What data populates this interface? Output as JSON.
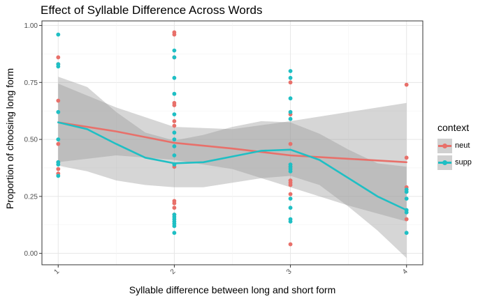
{
  "chart_data": {
    "type": "scatter",
    "title": "Effect of Syllable Difference Across Words",
    "xlabel": "Syllable difference between long and short form",
    "ylabel": "Proportion of choosing long form",
    "x_ticks": [
      "1",
      "2",
      "3",
      "4"
    ],
    "y_ticks": [
      "0.00",
      "0.25",
      "0.50",
      "0.75",
      "1.00"
    ],
    "xlim": [
      0.86,
      4.14
    ],
    "ylim": [
      -0.05,
      1.02
    ],
    "grid": true,
    "legend": {
      "title": "context",
      "position": "right"
    },
    "series": [
      {
        "name": "neut",
        "color": "#e8706a",
        "points": [
          [
            1,
            0.86
          ],
          [
            1,
            0.83
          ],
          [
            1,
            0.67
          ],
          [
            1,
            0.48
          ],
          [
            1,
            0.4
          ],
          [
            1,
            0.37
          ],
          [
            1,
            0.35
          ],
          [
            2,
            0.97
          ],
          [
            2,
            0.96
          ],
          [
            2,
            0.86
          ],
          [
            2,
            0.66
          ],
          [
            2,
            0.65
          ],
          [
            2,
            0.58
          ],
          [
            2,
            0.56
          ],
          [
            2,
            0.38
          ],
          [
            2,
            0.23
          ],
          [
            2,
            0.22
          ],
          [
            2,
            0.2
          ],
          [
            2,
            0.17
          ],
          [
            3,
            0.75
          ],
          [
            3,
            0.61
          ],
          [
            3,
            0.48
          ],
          [
            3,
            0.38
          ],
          [
            3,
            0.32
          ],
          [
            3,
            0.31
          ],
          [
            3,
            0.3
          ],
          [
            3,
            0.26
          ],
          [
            3,
            0.04
          ],
          [
            4,
            0.74
          ],
          [
            4,
            0.42
          ],
          [
            4,
            0.29
          ],
          [
            4,
            0.15
          ]
        ],
        "smooth": [
          [
            1,
            0.575
          ],
          [
            1.5,
            0.535
          ],
          [
            2,
            0.485
          ],
          [
            2.5,
            0.46
          ],
          [
            3,
            0.43
          ],
          [
            3.5,
            0.415
          ],
          [
            4,
            0.4
          ]
        ],
        "band_upper": [
          [
            1,
            0.745
          ],
          [
            1.5,
            0.64
          ],
          [
            2,
            0.555
          ],
          [
            2.5,
            0.545
          ],
          [
            3,
            0.58
          ],
          [
            3.5,
            0.62
          ],
          [
            4,
            0.66
          ]
        ],
        "band_lower": [
          [
            1,
            0.4
          ],
          [
            1.5,
            0.43
          ],
          [
            2,
            0.41
          ],
          [
            2.5,
            0.37
          ],
          [
            3,
            0.29
          ],
          [
            3.5,
            0.21
          ],
          [
            4,
            0.14
          ]
        ]
      },
      {
        "name": "supp",
        "color": "#1fbfc4",
        "points": [
          [
            1,
            0.96
          ],
          [
            1,
            0.83
          ],
          [
            1,
            0.82
          ],
          [
            1,
            0.62
          ],
          [
            1,
            0.5
          ],
          [
            1,
            0.4
          ],
          [
            1,
            0.39
          ],
          [
            1,
            0.34
          ],
          [
            2,
            0.89
          ],
          [
            2,
            0.86
          ],
          [
            2,
            0.77
          ],
          [
            2,
            0.7
          ],
          [
            2,
            0.61
          ],
          [
            2,
            0.53
          ],
          [
            2,
            0.5
          ],
          [
            2,
            0.47
          ],
          [
            2,
            0.43
          ],
          [
            2,
            0.39
          ],
          [
            2,
            0.17
          ],
          [
            2,
            0.16
          ],
          [
            2,
            0.15
          ],
          [
            2,
            0.14
          ],
          [
            2,
            0.13
          ],
          [
            2,
            0.12
          ],
          [
            2,
            0.09
          ],
          [
            3,
            0.8
          ],
          [
            3,
            0.77
          ],
          [
            3,
            0.68
          ],
          [
            3,
            0.62
          ],
          [
            3,
            0.59
          ],
          [
            3,
            0.39
          ],
          [
            3,
            0.38
          ],
          [
            3,
            0.37
          ],
          [
            3,
            0.36
          ],
          [
            3,
            0.24
          ],
          [
            3,
            0.2
          ],
          [
            3,
            0.15
          ],
          [
            3,
            0.14
          ],
          [
            4,
            0.28
          ],
          [
            4,
            0.27
          ],
          [
            4,
            0.24
          ],
          [
            4,
            0.19
          ],
          [
            4,
            0.18
          ],
          [
            4,
            0.09
          ]
        ],
        "smooth": [
          [
            1,
            0.575
          ],
          [
            1.25,
            0.545
          ],
          [
            1.5,
            0.48
          ],
          [
            1.75,
            0.42
          ],
          [
            2,
            0.395
          ],
          [
            2.25,
            0.4
          ],
          [
            2.5,
            0.425
          ],
          [
            2.75,
            0.45
          ],
          [
            3,
            0.455
          ],
          [
            3.25,
            0.41
          ],
          [
            3.5,
            0.33
          ],
          [
            3.75,
            0.25
          ],
          [
            4,
            0.19
          ]
        ],
        "band_upper": [
          [
            1,
            0.775
          ],
          [
            1.25,
            0.73
          ],
          [
            1.5,
            0.62
          ],
          [
            1.75,
            0.53
          ],
          [
            2,
            0.495
          ],
          [
            2.25,
            0.52
          ],
          [
            2.5,
            0.555
          ],
          [
            2.75,
            0.58
          ],
          [
            3,
            0.575
          ],
          [
            3.25,
            0.525
          ],
          [
            3.5,
            0.455
          ],
          [
            3.75,
            0.395
          ],
          [
            4,
            0.38
          ]
        ],
        "band_lower": [
          [
            1,
            0.385
          ],
          [
            1.25,
            0.36
          ],
          [
            1.5,
            0.32
          ],
          [
            1.75,
            0.3
          ],
          [
            2,
            0.29
          ],
          [
            2.25,
            0.29
          ],
          [
            2.5,
            0.31
          ],
          [
            2.75,
            0.33
          ],
          [
            3,
            0.34
          ],
          [
            3.25,
            0.3
          ],
          [
            3.5,
            0.205
          ],
          [
            3.75,
            0.1
          ],
          [
            4,
            -0.02
          ]
        ]
      }
    ]
  }
}
